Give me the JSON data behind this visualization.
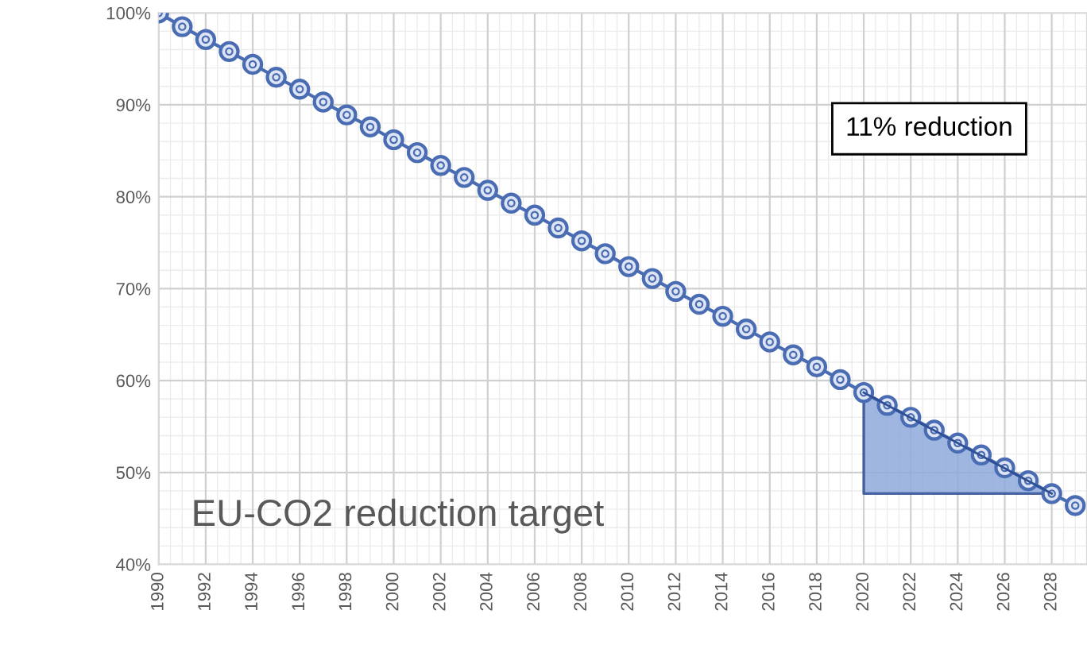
{
  "chart_data": {
    "type": "line",
    "x": [
      1990,
      1991,
      1992,
      1993,
      1994,
      1995,
      1996,
      1997,
      1998,
      1999,
      2000,
      2001,
      2002,
      2003,
      2004,
      2005,
      2006,
      2007,
      2008,
      2009,
      2010,
      2011,
      2012,
      2013,
      2014,
      2015,
      2016,
      2017,
      2018,
      2019,
      2020,
      2021,
      2022,
      2023,
      2024,
      2025,
      2026,
      2027,
      2028,
      2029
    ],
    "series": [
      {
        "type": "line",
        "color": "#4a6cb3",
        "values": [
          100,
          98.5,
          97.1,
          95.8,
          94.4,
          93.0,
          91.7,
          90.3,
          88.9,
          87.6,
          86.2,
          84.8,
          83.4,
          82.1,
          80.7,
          79.3,
          78.0,
          76.6,
          75.2,
          73.8,
          72.4,
          71.1,
          69.7,
          68.3,
          67.0,
          65.6,
          64.2,
          62.8,
          61.5,
          60.1,
          58.7,
          57.3,
          56.0,
          54.6,
          53.2,
          51.9,
          50.5,
          49.1,
          47.7,
          46.4
        ]
      },
      {
        "color": "#2f4f96",
        "x": [
          2020,
          2028
        ],
        "values": [
          58.7,
          47.7
        ],
        "lower": [
          47.7,
          47.7
        ],
        "upper": [
          58.7,
          47.7
        ]
      }
    ],
    "xlim": [
      1990,
      2029.5
    ],
    "xticks": [
      1990,
      1992,
      1994,
      1996,
      1998,
      2000,
      2002,
      2004,
      2006,
      2008,
      2010,
      2012,
      2014,
      2016,
      2018,
      2020,
      2022,
      2024,
      2026,
      2028
    ],
    "ylim": [
      40,
      100
    ],
    "yticks": [
      {
        "value": 40,
        "label": "40%"
      },
      {
        "value": 50,
        "label": "50%"
      },
      {
        "value": 60,
        "label": "60%"
      },
      {
        "value": 70,
        "label": "70%"
      },
      {
        "value": 80,
        "label": "80%"
      },
      {
        "value": 90,
        "label": "90%"
      },
      {
        "value": 100,
        "label": "100%"
      }
    ],
    "grid": true,
    "marker": "circle",
    "annotations": [
      "EU-CO2 reduction target",
      "11% reduction"
    ]
  }
}
